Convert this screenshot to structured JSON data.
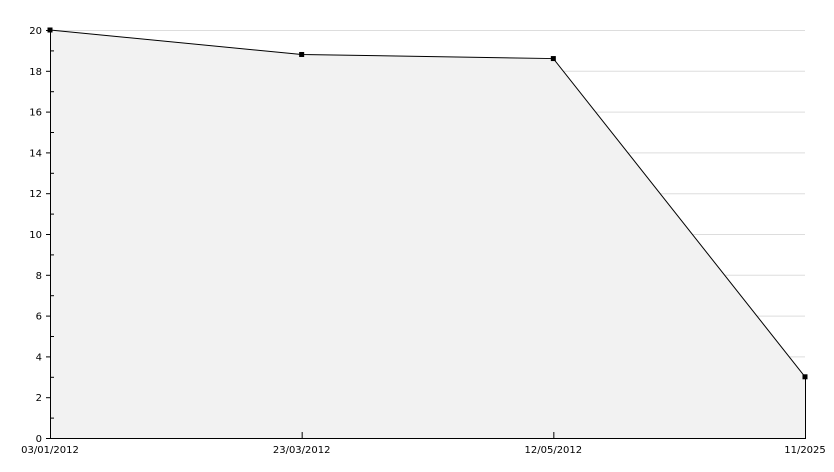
{
  "chart_data": {
    "type": "area",
    "title": "",
    "xlabel": "",
    "ylabel": "",
    "categories": [
      "03/01/2012",
      "23/03/2012",
      "12/05/2012",
      "11/2025"
    ],
    "values": [
      20,
      18.8,
      18.6,
      3
    ],
    "ylim": [
      0,
      20
    ],
    "yticks": [
      0,
      2,
      4,
      6,
      8,
      10,
      12,
      14,
      16,
      18,
      20
    ],
    "grid": true,
    "colors": {
      "line": "#000000",
      "fill": "#f2f2f2",
      "grid": "#dddddd"
    }
  }
}
